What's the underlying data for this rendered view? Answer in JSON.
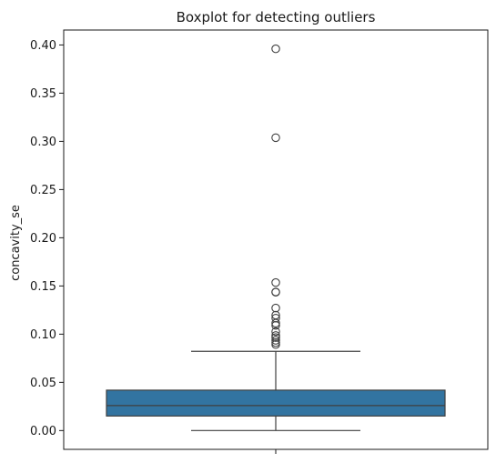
{
  "chart_data": {
    "type": "box",
    "title": "Boxplot for detecting outliers",
    "xlabel": "",
    "ylabel": "concavity_se",
    "ylim": [
      -0.0195,
      0.4155
    ],
    "yticks": [
      0.0,
      0.05,
      0.1,
      0.15,
      0.2,
      0.25,
      0.3,
      0.35,
      0.4
    ],
    "ytick_labels": [
      "0.00",
      "0.05",
      "0.10",
      "0.15",
      "0.20",
      "0.25",
      "0.30",
      "0.35",
      "0.40"
    ],
    "grid": false,
    "box": {
      "whisker_low": 0.0,
      "q1": 0.0151,
      "median": 0.0259,
      "q3": 0.0419,
      "whisker_high": 0.0822,
      "color": "#3274a1",
      "outliers": [
        0.396,
        0.3038,
        0.1535,
        0.1438,
        0.1435,
        0.1271,
        0.1197,
        0.1166,
        0.1114,
        0.1091,
        0.1027,
        0.0986,
        0.0965,
        0.0936,
        0.0912,
        0.0892
      ]
    }
  }
}
